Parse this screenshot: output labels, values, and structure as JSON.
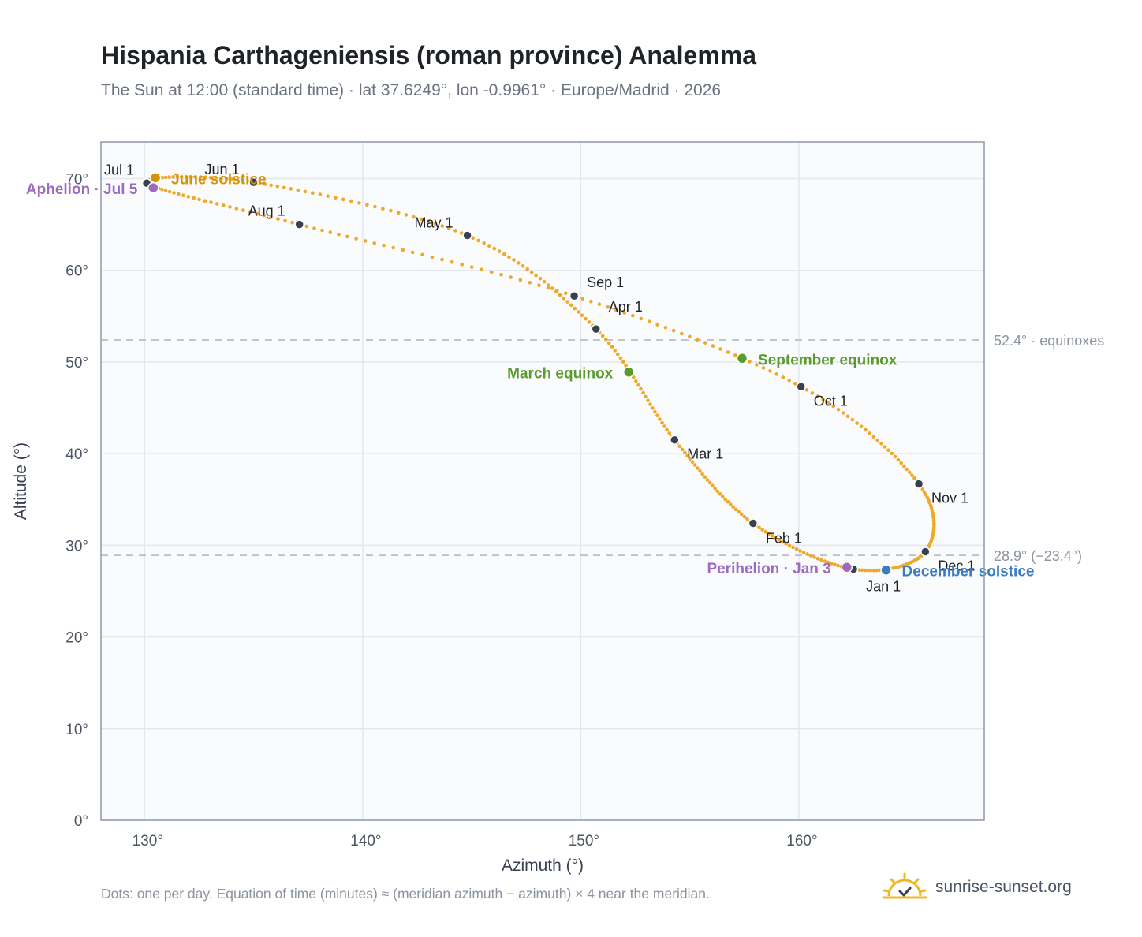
{
  "title": "Hispania Carthageniensis (roman province) Analemma",
  "subtitle": "The Sun at 12:00 (standard time) · lat 37.6249°, lon -0.9961° · Europe/Madrid · 2026",
  "footnote": "Dots: one per day. Equation of time (minutes) ≈ (meridian azimuth − azimuth) × 4 near the meridian.",
  "brand": {
    "name": "sunrise-sunset.org",
    "icon": "sun-icon"
  },
  "chart_data": {
    "type": "scatter",
    "xlabel": "Azimuth (°)",
    "ylabel": "Altitude (°)",
    "xlim": [
      128,
      168.5
    ],
    "ylim": [
      0,
      74
    ],
    "x_ticks": [
      130,
      140,
      150,
      160
    ],
    "y_ticks": [
      0,
      10,
      20,
      30,
      40,
      50,
      60,
      70
    ],
    "x_tick_labels": [
      "130°",
      "140°",
      "150°",
      "160°"
    ],
    "y_tick_labels": [
      "0°",
      "10°",
      "20°",
      "30°",
      "40°",
      "50°",
      "60°",
      "70°"
    ],
    "grid": true,
    "colors": {
      "path": "#f0a82a",
      "month_dot": "#374151",
      "june_solstice": "#d4940a",
      "december_solstice": "#3b7bbf",
      "equinox": "#5a9a2e",
      "apsis": "#9b6bbf",
      "reference_line": "#b8bfc8"
    },
    "reference_lines": [
      {
        "y": 52.4,
        "label": "52.4° · equinoxes"
      },
      {
        "y": 28.9,
        "label": "28.9° (−23.4°)"
      }
    ],
    "months": [
      {
        "label": "Jan 1",
        "x": 162.5,
        "y": 27.4
      },
      {
        "label": "Feb 1",
        "x": 157.9,
        "y": 32.4
      },
      {
        "label": "Mar 1",
        "x": 154.3,
        "y": 41.5
      },
      {
        "label": "Apr 1",
        "x": 150.7,
        "y": 53.6
      },
      {
        "label": "May 1",
        "x": 144.8,
        "y": 63.8
      },
      {
        "label": "Jun 1",
        "x": 135.0,
        "y": 69.6
      },
      {
        "label": "Jul 1",
        "x": 130.1,
        "y": 69.5
      },
      {
        "label": "Aug 1",
        "x": 137.1,
        "y": 65.0
      },
      {
        "label": "Sep 1",
        "x": 149.7,
        "y": 57.2
      },
      {
        "label": "Oct 1",
        "x": 160.1,
        "y": 47.3
      },
      {
        "label": "Nov 1",
        "x": 165.5,
        "y": 36.7
      },
      {
        "label": "Dec 1",
        "x": 165.8,
        "y": 29.3
      }
    ],
    "events": [
      {
        "label": "June solstice",
        "x": 130.5,
        "y": 70.1,
        "kind": "june_solstice"
      },
      {
        "label": "December solstice",
        "x": 164.0,
        "y": 27.3,
        "kind": "december_solstice"
      },
      {
        "label": "March equinox",
        "x": 152.2,
        "y": 48.9,
        "kind": "equinox"
      },
      {
        "label": "September equinox",
        "x": 157.4,
        "y": 50.4,
        "kind": "equinox"
      },
      {
        "label": "Aphelion · Jul 5",
        "x": 130.4,
        "y": 69.0,
        "kind": "apsis"
      },
      {
        "label": "Perihelion · Jan 3",
        "x": 162.2,
        "y": 27.6,
        "kind": "apsis"
      }
    ]
  }
}
